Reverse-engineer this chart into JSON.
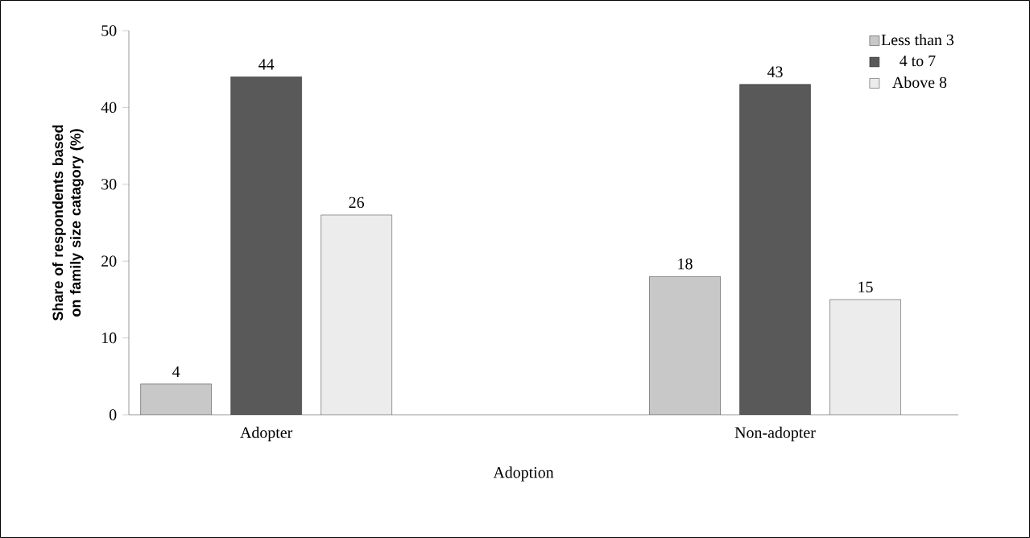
{
  "chart_data": {
    "type": "bar",
    "xlabel": "Adoption",
    "ylabel": "Share of respondents based on family size catagory   (%)",
    "categories": [
      "Adopter",
      "Non-adopter"
    ],
    "series": [
      {
        "name": "Less than 3",
        "color": "#c8c8c8",
        "values": [
          4,
          18
        ]
      },
      {
        "name": "4 to 7",
        "color": "#595959",
        "values": [
          44,
          43
        ]
      },
      {
        "name": " Above 8",
        "color": "#ececec",
        "values": [
          26,
          15
        ]
      }
    ],
    "ylim": [
      0,
      50
    ],
    "yticks": [
      0,
      10,
      20,
      30,
      40,
      50
    ],
    "data_labels": true,
    "legend": "top right",
    "grid": false
  }
}
